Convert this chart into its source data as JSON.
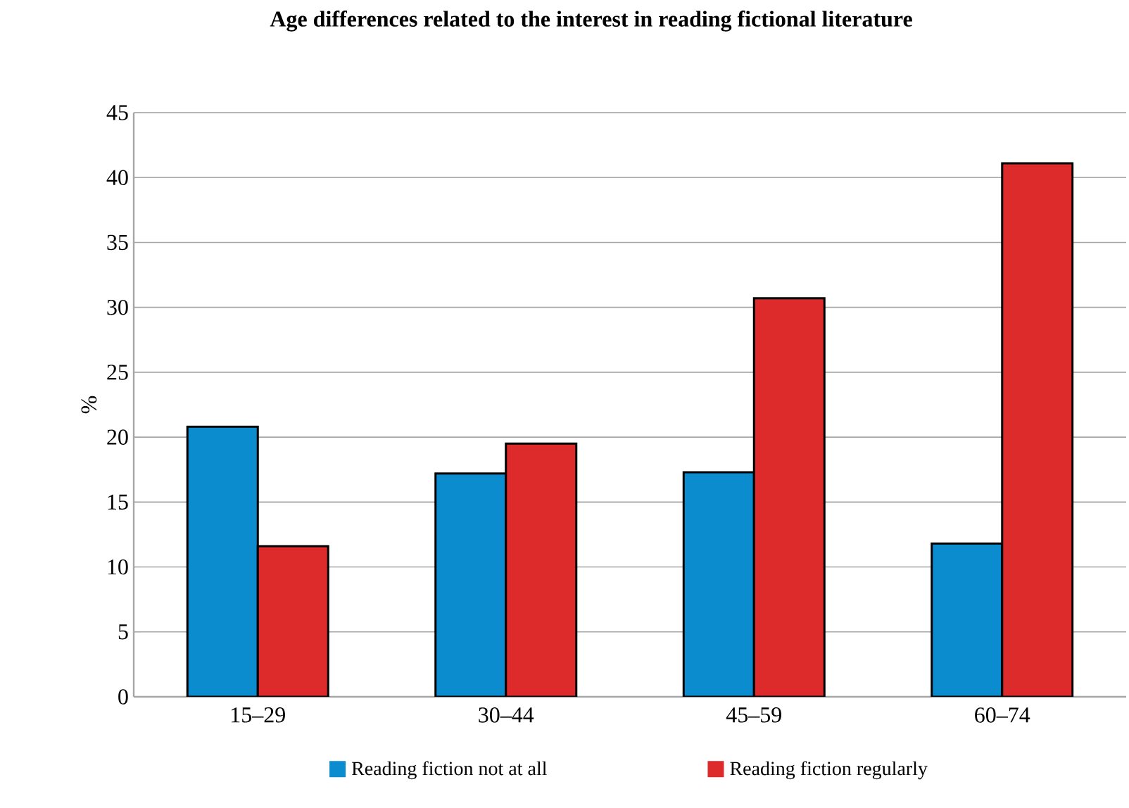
{
  "chart_data": {
    "type": "bar",
    "title": "Age differences related to the interest in reading fictional literature",
    "ylabel": "%",
    "categories": [
      "15–29",
      "30–44",
      "45–59",
      "60–74"
    ],
    "series": [
      {
        "name": "Reading fiction not at all",
        "color": "#0a8ccf",
        "values": [
          20.8,
          17.2,
          17.3,
          11.8
        ]
      },
      {
        "name": "Reading fiction regularly",
        "color": "#dd2a2a",
        "values": [
          11.6,
          19.5,
          30.7,
          41.1
        ]
      }
    ],
    "ylim": [
      0,
      45
    ],
    "yticks": [
      0,
      5,
      10,
      15,
      20,
      25,
      30,
      35,
      40,
      45
    ],
    "grid": "y",
    "legend": "bottom"
  }
}
